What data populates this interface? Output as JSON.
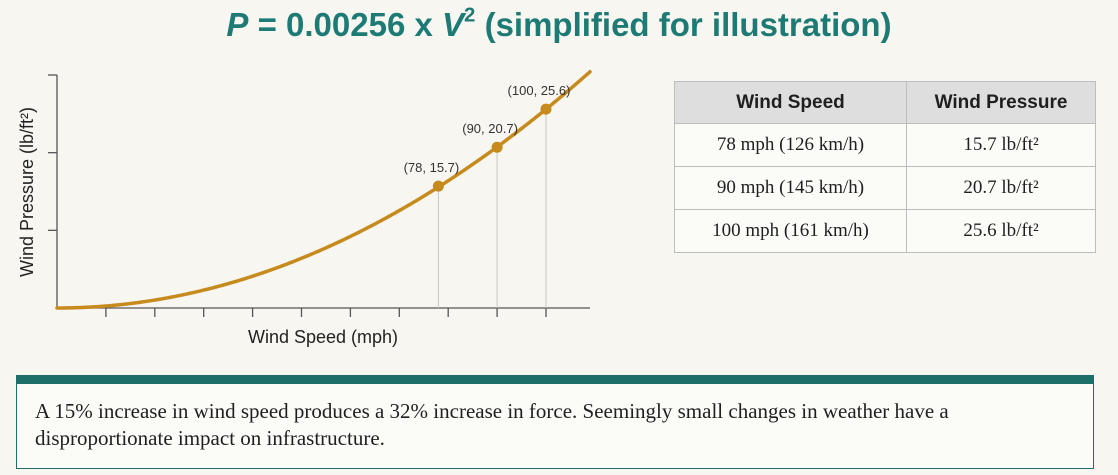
{
  "title": {
    "var_p": "P",
    "mid": " = 0.00256 x ",
    "var_v": "V",
    "exp": "2",
    "tail": " (simplified for illustration)"
  },
  "chart_data": {
    "type": "line",
    "xlabel": "Wind Speed (mph)",
    "ylabel": "Wind Pressure (lb/ft²)",
    "xlim": [
      0,
      109
    ],
    "ylim": [
      0,
      30
    ],
    "x_ticks": [
      0,
      10,
      20,
      30,
      40,
      50,
      60,
      70,
      80,
      90,
      100
    ],
    "y_ticks": [
      10,
      20,
      30
    ],
    "grid": false,
    "curve": {
      "formula": "0.00256 * x^2",
      "color": "#c68a1d"
    },
    "points": [
      {
        "x": 78,
        "y": 15.7,
        "label": "(78, 15.7)"
      },
      {
        "x": 90,
        "y": 20.7,
        "label": "(90, 20.7)"
      },
      {
        "x": 100,
        "y": 25.6,
        "label": "(100, 25.6)"
      }
    ]
  },
  "table": {
    "headers": [
      "Wind Speed",
      "Wind Pressure"
    ],
    "rows": [
      [
        "78 mph (126 km/h)",
        "15.7 lb/ft²"
      ],
      [
        "90 mph (145 km/h)",
        "20.7 lb/ft²"
      ],
      [
        "100 mph (161 km/h)",
        "25.6 lb/ft²"
      ]
    ]
  },
  "note": "A 15% increase in wind speed produces a 32% increase in force. Seemingly small changes in weather have a disproportionate impact on infrastructure."
}
